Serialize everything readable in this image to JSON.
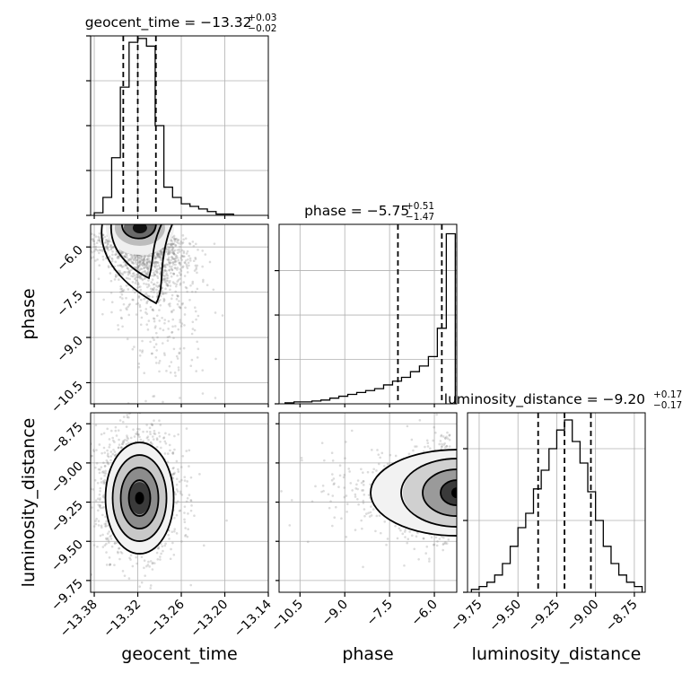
{
  "chart_data": {
    "type": "corner",
    "parameters": [
      {
        "name": "geocent_time",
        "xlabel": "geocent_time",
        "ticks": [
          -13.38,
          -13.32,
          -13.26,
          -13.2,
          -13.14
        ],
        "tick_labels": [
          "−13.38",
          "−13.32",
          "−13.26",
          "−13.20",
          "−13.14"
        ],
        "range": [
          -13.385,
          -13.14
        ],
        "title": {
          "main": "geocent_time = −13.32",
          "upper": "+0.03",
          "lower": "−0.02"
        },
        "median": -13.32,
        "quantiles": [
          -13.34,
          -13.32,
          -13.295
        ],
        "hist": {
          "edges": [
            -13.38,
            -13.368,
            -13.356,
            -13.344,
            -13.332,
            -13.32,
            -13.308,
            -13.296,
            -13.284,
            -13.272,
            -13.26,
            -13.248,
            -13.236,
            -13.224,
            -13.212,
            -13.2,
            -13.188
          ],
          "counts": [
            2,
            14,
            45,
            100,
            135,
            138,
            132,
            70,
            22,
            14,
            9,
            7,
            5,
            3,
            1,
            1
          ]
        }
      },
      {
        "name": "phase",
        "xlabel": "phase",
        "ylabel": "phase",
        "ticks": [
          -10.5,
          -9.0,
          -7.5,
          -6.0
        ],
        "tick_labels": [
          "−10.5",
          "−9.0",
          "−7.5",
          "−6.0"
        ],
        "range": [
          -11.2,
          -5.25
        ],
        "title": {
          "main": "phase = −5.75",
          "upper": "+0.51",
          "lower": "−1.47"
        },
        "median": -5.75,
        "quantiles": [
          -7.22,
          -5.75,
          -5.24
        ],
        "hist": {
          "edges": [
            -11.0,
            -10.7,
            -10.4,
            -10.1,
            -9.8,
            -9.5,
            -9.2,
            -8.9,
            -8.6,
            -8.3,
            -8.0,
            -7.7,
            -7.4,
            -7.1,
            -6.8,
            -6.5,
            -6.2,
            -5.9,
            -5.6,
            -5.3
          ],
          "counts": [
            1,
            2,
            2,
            3,
            4,
            6,
            8,
            10,
            12,
            14,
            16,
            20,
            24,
            28,
            34,
            40,
            50,
            80,
            180
          ]
        }
      },
      {
        "name": "luminosity_distance",
        "xlabel": "luminosity_distance",
        "ylabel": "luminosity_distance",
        "ticks": [
          -9.75,
          -9.5,
          -9.25,
          -9.0,
          -8.75
        ],
        "tick_labels": [
          "−9.75",
          "−9.50",
          "−9.25",
          "−9.00",
          "−8.75"
        ],
        "y_tick_labels": [
          "−9.75",
          "−9.50",
          "−9.25",
          "−9.00",
          "−8.75"
        ],
        "range": [
          -9.825,
          -8.68
        ],
        "title": {
          "main": "luminosity_distance = −9.20",
          "upper": "+0.17",
          "lower": "−0.17"
        },
        "median": -9.2,
        "quantiles": [
          -9.37,
          -9.2,
          -9.03
        ],
        "hist": {
          "edges": [
            -9.8,
            -9.75,
            -9.7,
            -9.65,
            -9.6,
            -9.55,
            -9.5,
            -9.45,
            -9.4,
            -9.35,
            -9.3,
            -9.25,
            -9.2,
            -9.15,
            -9.1,
            -9.05,
            -9.0,
            -8.95,
            -8.9,
            -8.85,
            -8.8,
            -8.75,
            -8.7
          ],
          "counts": [
            2,
            4,
            7,
            12,
            20,
            32,
            45,
            55,
            72,
            85,
            100,
            113,
            120,
            105,
            90,
            70,
            50,
            32,
            20,
            12,
            7,
            4
          ]
        }
      }
    ],
    "hist_yticks": [
      {
        "max": 140,
        "ticks": [
          0,
          35,
          70,
          105,
          140
        ]
      },
      {
        "max": 190,
        "ticks": [
          0,
          47,
          94,
          141
        ]
      },
      {
        "max": 125,
        "ticks": [
          0,
          50,
          100
        ]
      }
    ],
    "grid": true
  }
}
